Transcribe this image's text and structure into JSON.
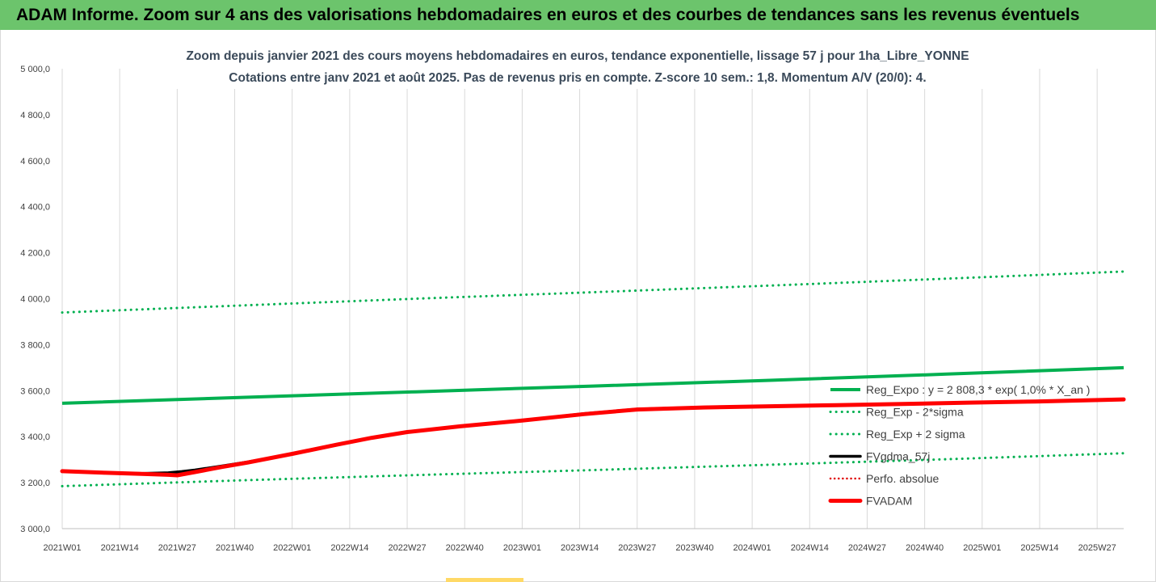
{
  "banner": {
    "title": "ADAM Informe. Zoom sur 4 ans des valorisations hebdomadaires en euros et des courbes de tendances sans les revenus éventuels"
  },
  "colors": {
    "banner": "#6cc46c",
    "trend": "#00b050",
    "fv": "#000000",
    "perfo": "#e00000",
    "adam": "#ff0000"
  },
  "chart_data": {
    "type": "line",
    "title": "Zoom depuis janvier 2021 des cours moyens hebdomadaires en euros, tendance exponentielle, lissage 57 j pour 1ha_Libre_YONNE",
    "subtitle": "Cotations entre janv 2021 et août 2025.  Pas de revenus pris en compte. Z-score 10 sem.: 1,8. Momentum A/V (20/0): 4.",
    "xlabel": "",
    "ylabel": "",
    "ylim": [
      3000,
      5000
    ],
    "yticks": [
      "3 000,0",
      "3 200,0",
      "3 400,0",
      "3 600,0",
      "3 800,0",
      "4 000,0",
      "4 200,0",
      "4 400,0",
      "4 600,0",
      "4 800,0",
      "5 000,0"
    ],
    "x_tick_labels": [
      "2021W01",
      "2021W14",
      "2021W27",
      "2021W40",
      "2022W01",
      "2022W14",
      "2022W27",
      "2022W40",
      "2023W01",
      "2023W14",
      "2023W27",
      "2023W40",
      "2024W01",
      "2024W14",
      "2024W27",
      "2024W40",
      "2025W01",
      "2025W14",
      "2025W27"
    ],
    "x_tick_weeks": [
      0,
      13,
      26,
      39,
      52,
      65,
      78,
      91,
      104,
      117,
      130,
      143,
      156,
      169,
      182,
      195,
      208,
      221,
      234
    ],
    "x_range_weeks": [
      0,
      240
    ],
    "grid": "vertical",
    "legend_position": "right",
    "series": [
      {
        "name": "Reg_Expo : y = 2 808,3 * exp( 1,0% *  X_an )",
        "style": "solid-green",
        "x": [
          0,
          40,
          80,
          120,
          160,
          200,
          240
        ],
        "y": [
          3545,
          3570,
          3595,
          3620,
          3645,
          3672,
          3700
        ]
      },
      {
        "name": "Reg_Exp - 2*sigma",
        "style": "dotted-green",
        "x": [
          0,
          40,
          80,
          120,
          160,
          200,
          240
        ],
        "y": [
          3185,
          3210,
          3233,
          3255,
          3278,
          3302,
          3328
        ]
      },
      {
        "name": "Reg_Exp + 2 sigma",
        "style": "dotted-green",
        "x": [
          0,
          40,
          80,
          120,
          160,
          200,
          240
        ],
        "y": [
          3940,
          3970,
          4000,
          4028,
          4057,
          4087,
          4118
        ]
      },
      {
        "name": "FVgdma_57j",
        "style": "solid-black",
        "x": [
          0,
          10,
          18,
          24,
          27,
          30,
          36,
          42,
          52,
          62,
          70,
          78,
          90,
          104,
          118,
          130,
          145,
          160,
          175,
          190,
          205,
          220,
          240
        ],
        "y": [
          3250,
          3243,
          3240,
          3243,
          3248,
          3255,
          3272,
          3290,
          3325,
          3365,
          3395,
          3420,
          3445,
          3470,
          3500,
          3520,
          3528,
          3533,
          3537,
          3542,
          3548,
          3553,
          3562
        ]
      },
      {
        "name": "Perfo. absolue",
        "style": "dotted-red",
        "x": [
          0,
          10,
          18,
          24,
          26,
          30,
          36,
          42,
          52,
          62,
          70,
          78,
          90,
          104,
          118,
          130,
          145,
          160,
          175,
          190,
          205,
          220,
          240
        ],
        "y": [
          3250,
          3243,
          3238,
          3234,
          3232,
          3246,
          3268,
          3288,
          3325,
          3365,
          3395,
          3420,
          3445,
          3470,
          3498,
          3518,
          3527,
          3532,
          3537,
          3542,
          3548,
          3553,
          3562
        ]
      },
      {
        "name": "FVADAM",
        "style": "solid-red-thick",
        "x": [
          0,
          10,
          18,
          24,
          26,
          30,
          36,
          42,
          52,
          62,
          70,
          78,
          90,
          104,
          118,
          130,
          145,
          160,
          175,
          190,
          205,
          220,
          240
        ],
        "y": [
          3250,
          3243,
          3238,
          3234,
          3232,
          3246,
          3268,
          3288,
          3325,
          3365,
          3395,
          3420,
          3445,
          3470,
          3498,
          3518,
          3527,
          3532,
          3537,
          3542,
          3548,
          3553,
          3562
        ]
      }
    ]
  }
}
